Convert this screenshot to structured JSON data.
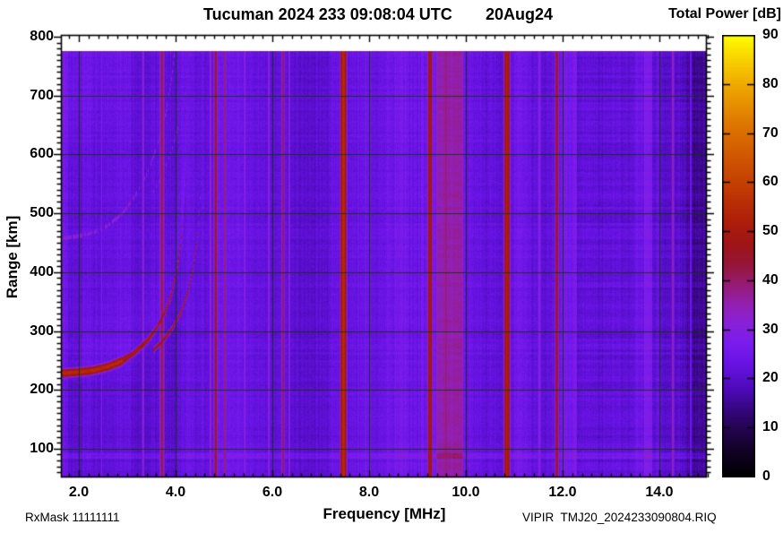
{
  "title": {
    "main": "Tucuman 2024 233 09:08:04 UTC",
    "date": "20Aug24"
  },
  "colorbar": {
    "title": "Total Power [dB]",
    "min": 0,
    "max": 90,
    "tick_values": [
      0,
      10,
      20,
      30,
      40,
      50,
      60,
      70,
      80,
      90
    ],
    "tick_labels": [
      "0",
      "10",
      "20",
      "30",
      "40",
      "50",
      "60",
      "70",
      "80",
      "90"
    ]
  },
  "axes": {
    "x_label": "Frequency [MHz]",
    "y_label": "Range [km]",
    "x_tick_values": [
      2.0,
      4.0,
      6.0,
      8.0,
      10.0,
      12.0,
      14.0
    ],
    "x_tick_labels": [
      "2.0",
      "4.0",
      "6.0",
      "8.0",
      "10.0",
      "12.0",
      "14.0"
    ],
    "y_tick_values": [
      100,
      200,
      300,
      400,
      500,
      600,
      700,
      800
    ],
    "y_tick_labels": [
      "100",
      "200",
      "300",
      "400",
      "500",
      "600",
      "700",
      "800"
    ],
    "x_range_mhz": [
      1.63,
      15.0
    ],
    "y_range_km": [
      51,
      800
    ],
    "x_minor_step_mhz": 0.2,
    "y_minor_step_km": 10,
    "grid": true
  },
  "footer": {
    "left": "RxMask 11111111",
    "right": "VIPIR  TMJ20_2024233090804.RIQ"
  },
  "chart_data": {
    "type": "heatmap",
    "title": "Tucuman 2024 233 09:08:04 UTC 20Aug24",
    "value_label": "Total Power [dB]",
    "value_range": [
      0,
      90
    ],
    "x_range_mhz": [
      1.63,
      15.0
    ],
    "y_range_km": [
      51,
      800
    ],
    "no_data_above_km": 775,
    "colormap_stops": [
      [
        0,
        [
          0,
          0,
          0
        ]
      ],
      [
        6,
        [
          22,
          2,
          44
        ]
      ],
      [
        12,
        [
          46,
          5,
          104
        ]
      ],
      [
        18,
        [
          78,
          11,
          186
        ]
      ],
      [
        23,
        [
          104,
          19,
          228
        ]
      ],
      [
        27,
        [
          122,
          28,
          238
        ]
      ],
      [
        31,
        [
          136,
          32,
          220
        ]
      ],
      [
        35,
        [
          148,
          32,
          180
        ]
      ],
      [
        39,
        [
          150,
          28,
          120
        ]
      ],
      [
        43,
        [
          150,
          22,
          60
        ]
      ],
      [
        47,
        [
          158,
          20,
          26
        ]
      ],
      [
        52,
        [
          174,
          30,
          10
        ]
      ],
      [
        58,
        [
          192,
          56,
          4
        ]
      ],
      [
        65,
        [
          208,
          86,
          2
        ]
      ],
      [
        72,
        [
          222,
          120,
          0
        ]
      ],
      [
        80,
        [
          240,
          170,
          0
        ]
      ],
      [
        86,
        [
          250,
          218,
          0
        ]
      ],
      [
        90,
        [
          255,
          255,
          0
        ]
      ]
    ],
    "background_bands_db": [
      [
        1.63,
        1.78,
        27
      ],
      [
        1.78,
        2.2,
        24
      ],
      [
        2.2,
        4.6,
        23
      ],
      [
        4.6,
        6.0,
        22.5
      ],
      [
        6.0,
        6.55,
        23
      ],
      [
        6.55,
        7.05,
        22
      ],
      [
        7.05,
        7.2,
        23
      ],
      [
        7.2,
        7.8,
        25
      ],
      [
        7.8,
        8.3,
        23.5
      ],
      [
        8.3,
        9.2,
        25.5
      ],
      [
        9.2,
        9.38,
        26
      ],
      [
        9.38,
        9.95,
        34
      ],
      [
        9.95,
        11.95,
        23.5
      ],
      [
        11.95,
        12.3,
        26.5
      ],
      [
        12.3,
        13.5,
        20
      ],
      [
        13.5,
        13.68,
        23
      ],
      [
        13.68,
        13.86,
        26.5
      ],
      [
        13.86,
        14.1,
        20
      ],
      [
        14.1,
        14.55,
        18.5
      ],
      [
        14.55,
        15.05,
        17
      ]
    ],
    "rfi_lines": [
      {
        "f_mhz": 2.47,
        "w": 1,
        "db": 27
      },
      {
        "f_mhz": 3.33,
        "w": 1,
        "db": 33
      },
      {
        "f_mhz": 3.72,
        "w": 1.6,
        "db": 42
      },
      {
        "f_mhz": 4.72,
        "w": 1,
        "db": 34
      },
      {
        "f_mhz": 4.83,
        "w": 1.4,
        "db": 44
      },
      {
        "f_mhz": 5.02,
        "w": 1,
        "db": 40
      },
      {
        "f_mhz": 5.43,
        "w": 1,
        "db": 31
      },
      {
        "f_mhz": 5.93,
        "w": 1,
        "db": 32
      },
      {
        "f_mhz": 6.22,
        "w": 1,
        "db": 42
      },
      {
        "f_mhz": 6.35,
        "w": 1,
        "db": 32
      },
      {
        "f_mhz": 7.47,
        "w": 2,
        "db": 55
      },
      {
        "f_mhz": 9.26,
        "w": 1.6,
        "db": 50
      },
      {
        "f_mhz": 9.59,
        "w": 1,
        "db": 40
      },
      {
        "f_mhz": 10.85,
        "w": 2,
        "db": 52
      },
      {
        "f_mhz": 11.52,
        "w": 1.6,
        "db": 30
      },
      {
        "f_mhz": 11.88,
        "w": 1.4,
        "db": 45
      },
      {
        "f_mhz": 14.28,
        "w": 1,
        "db": 36
      },
      {
        "f_mhz": 14.65,
        "w": 1,
        "db": 26
      }
    ],
    "echo_trace_o_mode": [
      [
        1.63,
        229
      ],
      [
        2.0,
        231
      ],
      [
        2.3,
        234
      ],
      [
        2.6,
        240
      ],
      [
        2.9,
        250
      ],
      [
        3.15,
        264
      ],
      [
        3.4,
        283
      ],
      [
        3.6,
        305
      ],
      [
        3.78,
        332
      ],
      [
        3.92,
        365
      ],
      [
        4.03,
        405
      ],
      [
        4.11,
        450
      ],
      [
        4.16,
        500
      ],
      [
        4.2,
        555
      ],
      [
        4.22,
        600
      ]
    ],
    "x_mode_offset_mhz": 0.33,
    "second_hop": {
      "range_factor": 2.0,
      "db": 33,
      "dotted": true
    },
    "e_layer_line_km": [
      84,
      93
    ],
    "spread_haze": {
      "f_max_mhz": 3.4,
      "center_km_at_fmin": 700,
      "slope_km_per_mhz": 55,
      "sigma_km": 70,
      "amp_db": 2.4
    },
    "texture": {
      "trace_db": 55,
      "trace_db_steep": 48,
      "col_noise_db": 2.5,
      "row_noise_db": 0.9,
      "pixel_noise_db": 3.2
    }
  }
}
